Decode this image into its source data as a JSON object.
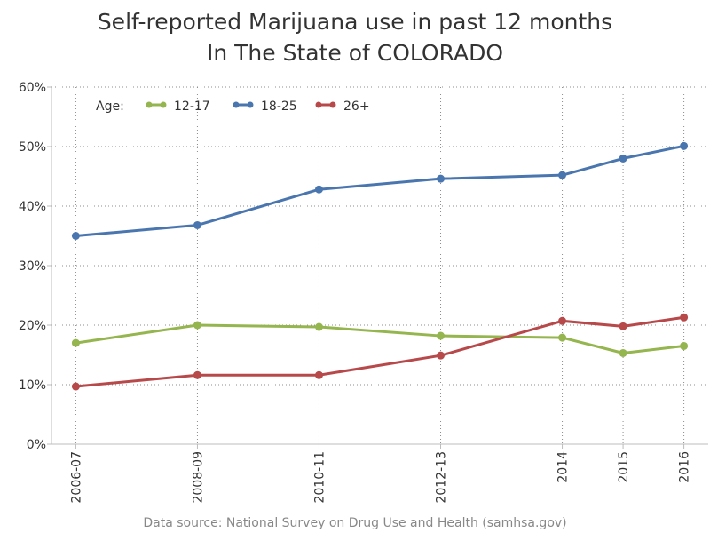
{
  "chart_data": {
    "type": "line",
    "title": "Self-reported Marijuana use in past 12 months",
    "subtitle": "In The State of COLORADO",
    "source": "Data source: National Survey on Drug Use and Health (samhsa.gov)",
    "xlabel": "",
    "ylabel": "",
    "legend_title": "Age:",
    "legend_position": "top-left (inside plot)",
    "grid": true,
    "x": [
      2006.5,
      2008.5,
      2010.5,
      2012.5,
      2014.5,
      2015.5,
      2016.5
    ],
    "x_tick_labels": [
      "2006-07",
      "2008-09",
      "2010-11",
      "2012-13",
      "2014",
      "2015",
      "2016"
    ],
    "ylim": [
      0,
      60
    ],
    "y_ticks": [
      0,
      10,
      20,
      30,
      40,
      50,
      60
    ],
    "y_tick_labels": [
      "0%",
      "10%",
      "20%",
      "30%",
      "40%",
      "50%",
      "60%"
    ],
    "series": [
      {
        "name": "12-17",
        "color": "#95b54e",
        "values": [
          17.0,
          20.0,
          19.7,
          18.2,
          17.9,
          15.3,
          16.5
        ]
      },
      {
        "name": "18-25",
        "color": "#4a76b0",
        "values": [
          35.0,
          36.8,
          42.8,
          44.6,
          45.2,
          48.0,
          50.1
        ]
      },
      {
        "name": "26+",
        "color": "#b8494a",
        "values": [
          9.7,
          11.6,
          11.6,
          14.9,
          20.7,
          19.8,
          21.3
        ]
      }
    ]
  }
}
